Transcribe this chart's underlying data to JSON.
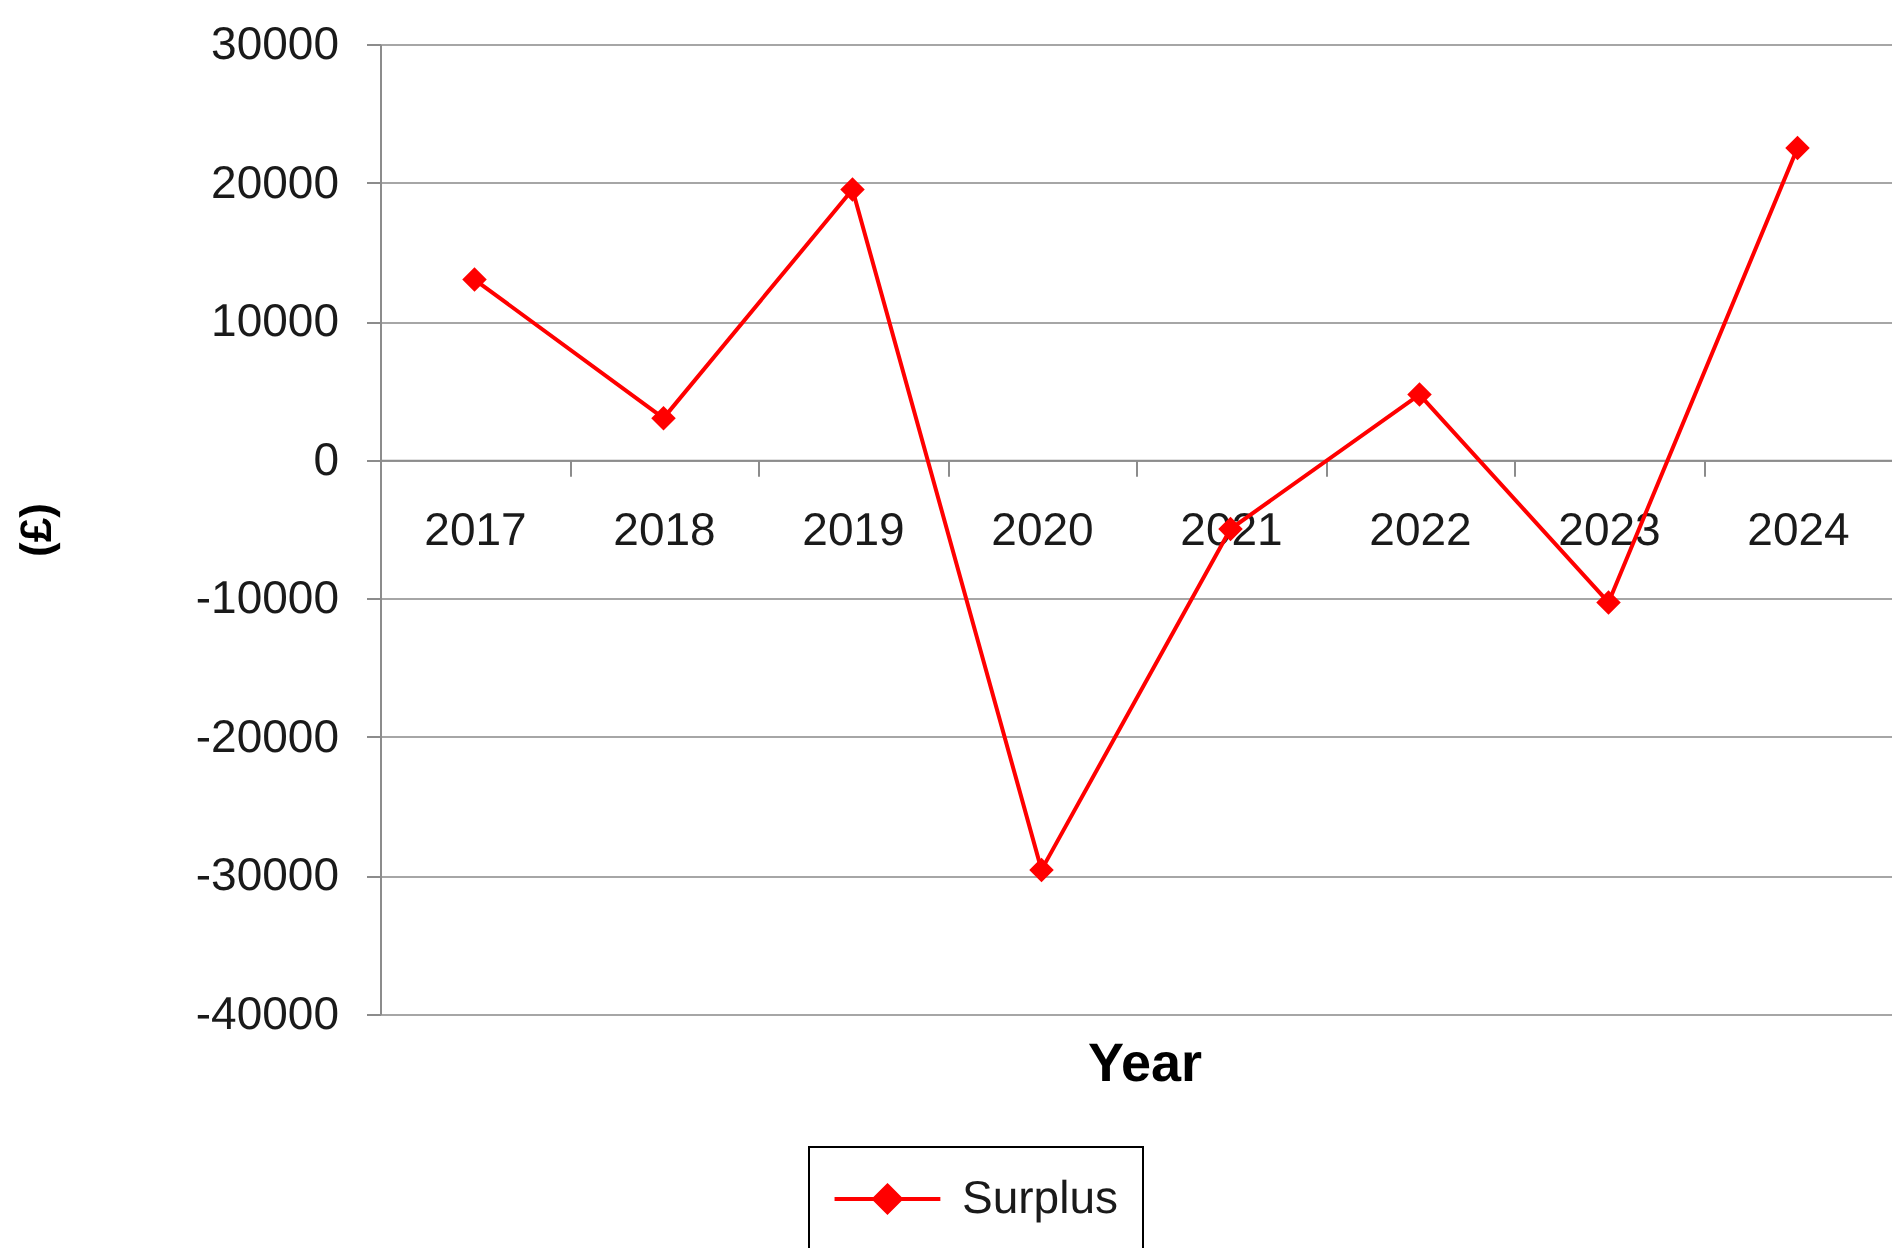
{
  "chart_data": {
    "type": "line",
    "xlabel": "Year",
    "ylabel": "(£)",
    "categories": [
      "2017",
      "2018",
      "2019",
      "2020",
      "2021",
      "2022",
      "2023",
      "2024"
    ],
    "series": [
      {
        "name": "Surplus",
        "color": "#ff0000",
        "values": [
          13000,
          3000,
          19500,
          -29600,
          -5000,
          4700,
          -10300,
          22500
        ]
      }
    ],
    "ylim": [
      -40000,
      30000
    ],
    "yticks": [
      -40000,
      -30000,
      -20000,
      -10000,
      0,
      10000,
      20000,
      30000
    ],
    "grid": "y",
    "legend": "bottom",
    "marker": "diamond",
    "line_style": "solid"
  }
}
